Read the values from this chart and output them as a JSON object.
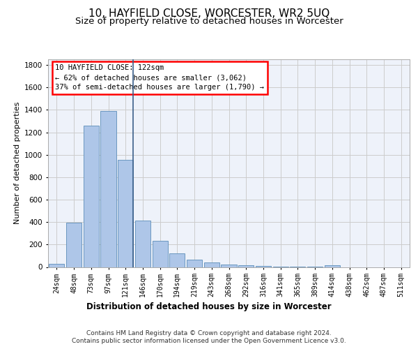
{
  "title": "10, HAYFIELD CLOSE, WORCESTER, WR2 5UQ",
  "subtitle": "Size of property relative to detached houses in Worcester",
  "xlabel": "Distribution of detached houses by size in Worcester",
  "ylabel": "Number of detached properties",
  "footer_line1": "Contains HM Land Registry data © Crown copyright and database right 2024.",
  "footer_line2": "Contains public sector information licensed under the Open Government Licence v3.0.",
  "annotation_line1": "10 HAYFIELD CLOSE: 122sqm",
  "annotation_line2": "← 62% of detached houses are smaller (3,062)",
  "annotation_line3": "37% of semi-detached houses are larger (1,790) →",
  "bar_categories": [
    "24sqm",
    "48sqm",
    "73sqm",
    "97sqm",
    "121sqm",
    "146sqm",
    "170sqm",
    "194sqm",
    "219sqm",
    "243sqm",
    "268sqm",
    "292sqm",
    "316sqm",
    "341sqm",
    "365sqm",
    "389sqm",
    "414sqm",
    "438sqm",
    "462sqm",
    "487sqm",
    "511sqm"
  ],
  "bar_values": [
    25,
    395,
    1258,
    1390,
    955,
    415,
    232,
    120,
    65,
    42,
    20,
    15,
    10,
    5,
    3,
    2,
    15,
    0,
    0,
    0,
    0
  ],
  "bar_color": "#aec6e8",
  "bar_edge_color": "#5b8db8",
  "vline_color": "#3a5f8a",
  "ylim": [
    0,
    1850
  ],
  "yticks": [
    0,
    200,
    400,
    600,
    800,
    1000,
    1200,
    1400,
    1600,
    1800
  ],
  "grid_color": "#cccccc",
  "axes_background": "#eef2fa",
  "title_fontsize": 11,
  "subtitle_fontsize": 9.5,
  "xlabel_fontsize": 8.5,
  "ylabel_fontsize": 8,
  "footer_fontsize": 6.5,
  "annotation_fontsize": 7.5
}
